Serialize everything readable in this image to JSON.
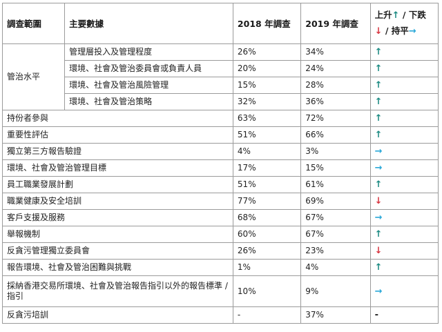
{
  "table": {
    "headers": {
      "scope": "調查範圍",
      "data": "主要數據",
      "y2018": "2018 年調查",
      "y2019": "2019 年調查",
      "trend_up": "上升",
      "trend_down_sep": " / 下跌",
      "trend_flat_sep": " / 持平"
    },
    "governance_label": "管治水平",
    "governance_rows": [
      {
        "item": "管理層投入及管理程度",
        "v2018": "26%",
        "v2019": "34%",
        "trend": "up"
      },
      {
        "item": "環境、社會及管治委員會或負責人員",
        "v2018": "20%",
        "v2019": "24%",
        "trend": "up"
      },
      {
        "item": "環境、社會及管治風險管理",
        "v2018": "15%",
        "v2019": "28%",
        "trend": "up"
      },
      {
        "item": "環境、社會及管治策略",
        "v2018": "32%",
        "v2019": "36%",
        "trend": "up"
      }
    ],
    "rows": [
      {
        "item": "持份者參與",
        "v2018": "63%",
        "v2019": "72%",
        "trend": "up"
      },
      {
        "item": "重要性評估",
        "v2018": "51%",
        "v2019": "66%",
        "trend": "up"
      },
      {
        "item": "獨立第三方報告驗證",
        "v2018": "4%",
        "v2019": "3%",
        "trend": "flat"
      },
      {
        "item": "環境、社會及管治管理目標",
        "v2018": "17%",
        "v2019": "15%",
        "trend": "flat"
      },
      {
        "item": "員工職業發展計劃",
        "v2018": "51%",
        "v2019": "61%",
        "trend": "up"
      },
      {
        "item": "職業健康及安全培訓",
        "v2018": "77%",
        "v2019": "69%",
        "trend": "down"
      },
      {
        "item": "客戶支援及服務",
        "v2018": "68%",
        "v2019": "67%",
        "trend": "flat"
      },
      {
        "item": "舉報機制",
        "v2018": "60%",
        "v2019": "67%",
        "trend": "up"
      },
      {
        "item": "反貪污管理獨立委員會",
        "v2018": "26%",
        "v2019": "23%",
        "trend": "down"
      },
      {
        "item": "報告環境、社會及管治困難與挑戰",
        "v2018": "1%",
        "v2019": "4%",
        "trend": "up"
      },
      {
        "item": "採納香港交易所環境、社會及管治報告指引以外的報告標準 / 指引",
        "v2018": "10%",
        "v2019": "9%",
        "trend": "flat"
      },
      {
        "item": "反貪污培訓",
        "v2018": "-",
        "v2019": "37%",
        "trend": "none"
      }
    ],
    "trend_colors": {
      "up": "#1b8a82",
      "down": "#d8343f",
      "flat": "#2aa8d8"
    },
    "trend_icons": {
      "up": "arrow-up-icon",
      "down": "arrow-down-icon",
      "flat": "arrow-right-icon"
    }
  }
}
